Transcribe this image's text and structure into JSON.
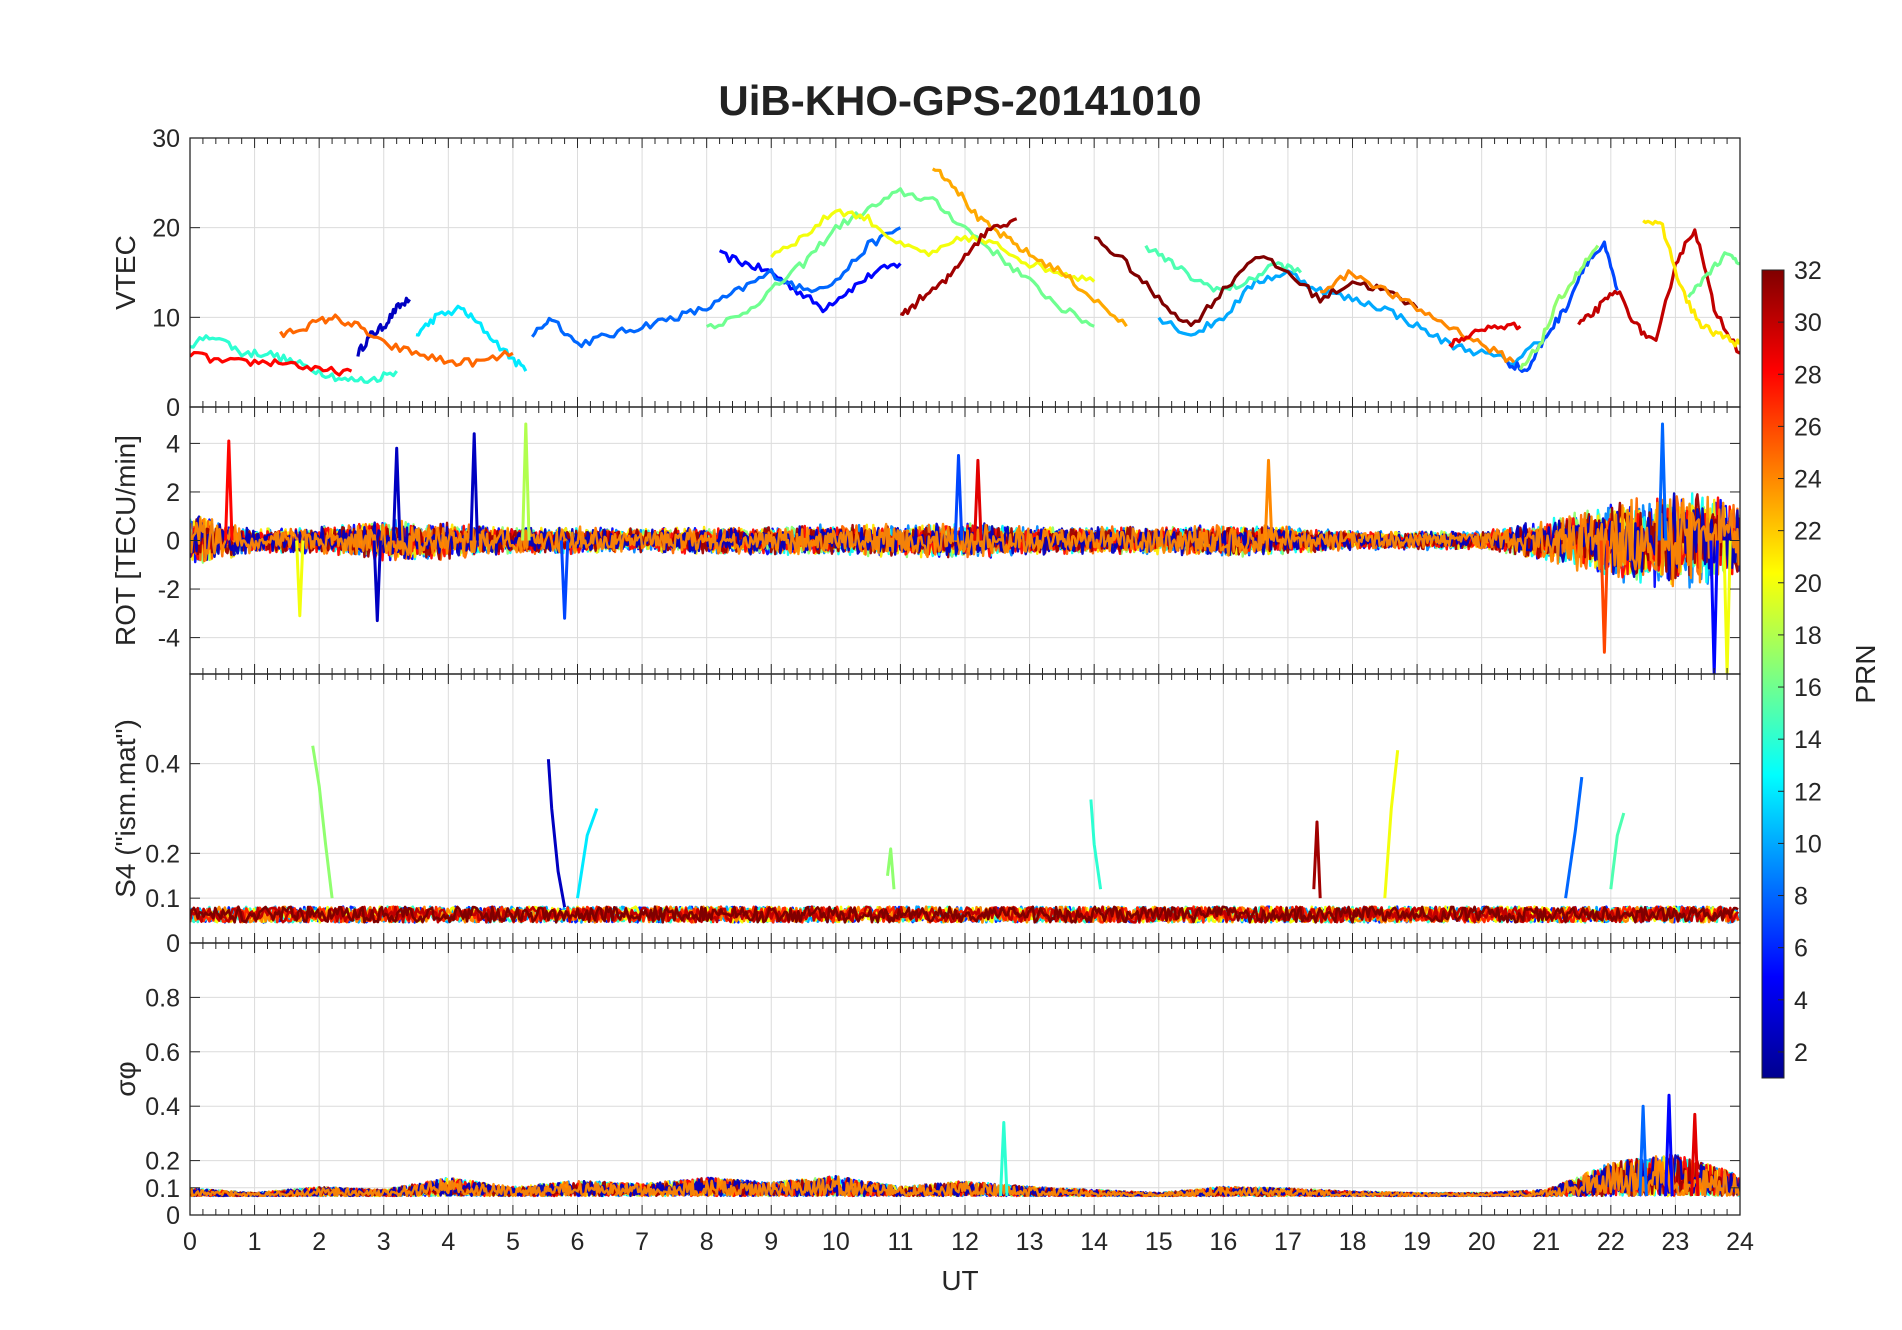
{
  "chart_data": {
    "type": "line",
    "title": "UiB-KHO-GPS-20141010",
    "xlabel": "UT",
    "xlim": [
      0,
      24
    ],
    "x_ticks": [
      0,
      1,
      2,
      3,
      4,
      5,
      6,
      7,
      8,
      9,
      10,
      11,
      12,
      13,
      14,
      15,
      16,
      17,
      18,
      19,
      20,
      21,
      22,
      23,
      24
    ],
    "colorbar": {
      "label": "PRN",
      "range": [
        1,
        32
      ],
      "ticks": [
        2,
        4,
        6,
        8,
        10,
        12,
        14,
        16,
        18,
        20,
        22,
        24,
        26,
        28,
        30,
        32
      ],
      "colormap": "jet"
    },
    "panels": [
      {
        "ylabel": "VTEC",
        "ylim": [
          0,
          30
        ],
        "yticks": [
          0,
          10,
          20,
          30
        ],
        "series": [
          {
            "prn": 3,
            "x": [
              2.6,
              2.8,
              3.0,
              3.2,
              3.4
            ],
            "y": [
              6,
              8,
              9,
              11,
              12
            ]
          },
          {
            "prn": 5,
            "x": [
              8.2,
              8.6,
              9.0,
              9.4,
              9.8,
              10.2,
              10.6,
              11.0
            ],
            "y": [
              17,
              16,
              15,
              13,
              11,
              13,
              15,
              16
            ]
          },
          {
            "prn": 8,
            "x": [
              5.3,
              5.6,
              6.0,
              6.5,
              7.0,
              7.5,
              8.0,
              8.5,
              9.0,
              9.5,
              10.0,
              10.5,
              11.0
            ],
            "y": [
              8,
              10,
              7,
              8,
              9,
              10,
              11,
              13,
              15,
              13,
              14,
              18,
              20
            ]
          },
          {
            "prn": 12,
            "x": [
              3.5,
              3.8,
              4.2,
              4.5,
              4.9,
              5.2
            ],
            "y": [
              8,
              10,
              11,
              9,
              6,
              4
            ]
          },
          {
            "prn": 14,
            "x": [
              0,
              0.4,
              0.8,
              1.2,
              1.6,
              2.0,
              2.4,
              2.8,
              3.2
            ],
            "y": [
              7,
              8,
              6,
              6,
              5,
              4,
              3,
              3,
              4
            ]
          },
          {
            "prn": 16,
            "x": [
              8.0,
              8.5,
              9.0,
              9.5,
              10.0,
              10.5,
              11.0,
              11.5,
              12.0,
              12.5,
              13.0,
              13.5,
              14.0
            ],
            "y": [
              9,
              10,
              13,
              16,
              20,
              22,
              24,
              23,
              20,
              17,
              14,
              11,
              9
            ]
          },
          {
            "prn": 20,
            "x": [
              9.0,
              9.5,
              10.0,
              10.5,
              11.0,
              11.5,
              12.0,
              12.5,
              13.0,
              13.5,
              14.0
            ],
            "y": [
              17,
              19,
              22,
              21,
              18,
              17,
              19,
              18,
              16,
              15,
              14
            ]
          },
          {
            "prn": 23,
            "x": [
              11.5,
              11.8,
              12.2,
              12.6,
              13.0,
              13.5,
              14.0,
              14.5
            ],
            "y": [
              27,
              25,
              21,
              19,
              17,
              15,
              12,
              9
            ]
          },
          {
            "prn": 25,
            "x": [
              1.4,
              1.8,
              2.2,
              2.6,
              3.0,
              3.5,
              4.0,
              4.5,
              5.0
            ],
            "y": [
              8,
              9,
              10,
              9,
              7,
              6,
              5,
              5,
              6
            ]
          },
          {
            "prn": 28,
            "x": [
              0,
              0.5,
              1.0,
              1.5,
              2.0,
              2.5
            ],
            "y": [
              6,
              5,
              5,
              5,
              4,
              4
            ]
          },
          {
            "prn": 31,
            "x": [
              11.0,
              11.3,
              11.7,
              12.0,
              12.4,
              12.8
            ],
            "y": [
              10,
              12,
              14,
              17,
              20,
              21
            ]
          },
          {
            "prn": 10,
            "x": [
              15.0,
              15.5,
              16.0,
              16.5,
              17.0,
              17.5,
              18.0,
              18.5,
              19.0,
              19.5,
              20.0,
              20.5,
              21.0
            ],
            "y": [
              10,
              8,
              10,
              14,
              15,
              13,
              12,
              11,
              9,
              7,
              6,
              5,
              8
            ]
          },
          {
            "prn": 15,
            "x": [
              14.8,
              15.2,
              15.6,
              16.0,
              16.4,
              16.8,
              17.2
            ],
            "y": [
              18,
              16,
              14,
              13,
              14,
              16,
              15
            ]
          },
          {
            "prn": 32,
            "x": [
              14.0,
              14.5,
              15.0,
              15.5,
              16.0,
              16.5,
              17.0,
              17.5,
              18.0,
              18.5,
              19.0
            ],
            "y": [
              19,
              16,
              12,
              9,
              13,
              17,
              15,
              12,
              14,
              13,
              11
            ]
          },
          {
            "prn": 24,
            "x": [
              17.5,
              18.0,
              18.5,
              19.0,
              19.5,
              20.0,
              20.5
            ],
            "y": [
              13,
              15,
              13,
              11,
              9,
              7,
              5
            ]
          },
          {
            "prn": 29,
            "x": [
              19.5,
              19.8,
              20.2,
              20.6
            ],
            "y": [
              7,
              8,
              9,
              9
            ]
          },
          {
            "prn": 7,
            "x": [
              20.4,
              20.7,
              21.0,
              21.3,
              21.6,
              21.9,
              22.1
            ],
            "y": [
              5,
              4,
              8,
              11,
              16,
              18,
              13
            ]
          },
          {
            "prn": 17,
            "x": [
              20.6,
              20.9,
              21.2,
              21.5,
              21.8
            ],
            "y": [
              4,
              7,
              12,
              15,
              18
            ]
          },
          {
            "prn": 30,
            "x": [
              21.5,
              21.8,
              22.1,
              22.4,
              22.7,
              23.0,
              23.3,
              23.6,
              24.0
            ],
            "y": [
              9,
              11,
              13,
              9,
              7,
              16,
              20,
              11,
              6
            ]
          },
          {
            "prn": 21,
            "x": [
              22.5,
              22.8,
              23.1,
              23.4,
              23.7,
              24.0
            ],
            "y": [
              21,
              20,
              13,
              9,
              8,
              7
            ]
          },
          {
            "prn": 16,
            "x": [
              23.2,
              23.5,
              23.8,
              24.0
            ],
            "y": [
              12,
              15,
              17,
              16
            ]
          }
        ]
      },
      {
        "ylabel": "ROT [TECU/min]",
        "ylim": [
          -5.5,
          5.5
        ],
        "yticks": [
          -4,
          -2,
          0,
          2,
          4
        ],
        "noise_envelope": {
          "x": [
            0,
            1,
            2,
            3,
            4,
            5,
            6,
            7,
            8,
            9,
            10,
            11,
            12,
            13,
            14,
            15,
            16,
            17,
            18,
            19,
            20,
            21,
            22,
            23,
            24
          ],
          "amplitude": [
            1.2,
            0.5,
            0.6,
            0.9,
            0.8,
            0.6,
            0.6,
            0.5,
            0.6,
            0.6,
            0.7,
            0.7,
            0.8,
            0.6,
            0.6,
            0.6,
            0.7,
            0.6,
            0.4,
            0.4,
            0.4,
            0.9,
            1.7,
            2.2,
            1.6
          ]
        },
        "spikes": [
          {
            "prn": 28,
            "x": 0.6,
            "y": 4.1
          },
          {
            "prn": 3,
            "x": 3.2,
            "y": 3.8
          },
          {
            "prn": 3,
            "x": 4.4,
            "y": 4.4
          },
          {
            "prn": 18,
            "x": 5.2,
            "y": 4.8
          },
          {
            "prn": 3,
            "x": 2.9,
            "y": -3.3
          },
          {
            "prn": 20,
            "x": 1.7,
            "y": -3.1
          },
          {
            "prn": 7,
            "x": 5.8,
            "y": -3.2
          },
          {
            "prn": 7,
            "x": 11.9,
            "y": 3.5
          },
          {
            "prn": 29,
            "x": 12.2,
            "y": 3.3
          },
          {
            "prn": 24,
            "x": 16.7,
            "y": 3.3
          },
          {
            "prn": 26,
            "x": 21.9,
            "y": -4.6
          },
          {
            "prn": 5,
            "x": 23.6,
            "y": -5.5
          },
          {
            "prn": 20,
            "x": 23.8,
            "y": -5.5
          },
          {
            "prn": 8,
            "x": 22.8,
            "y": 4.8
          }
        ]
      },
      {
        "ylabel": "S4 (\"ism.mat\")",
        "ylim": [
          0,
          0.6
        ],
        "yticks": [
          0,
          0.1,
          0.2,
          0.4
        ],
        "baseline": 0.06,
        "spikes": [
          {
            "prn": 17,
            "x": [
              1.9,
              2.0,
              2.1,
              2.2
            ],
            "y": [
              0.44,
              0.35,
              0.22,
              0.1
            ]
          },
          {
            "prn": 3,
            "x": [
              5.55,
              5.6,
              5.7,
              5.8
            ],
            "y": [
              0.41,
              0.3,
              0.16,
              0.08
            ]
          },
          {
            "prn": 12,
            "x": [
              6.0,
              6.15,
              6.3
            ],
            "y": [
              0.1,
              0.24,
              0.3
            ]
          },
          {
            "prn": 17,
            "x": [
              10.8,
              10.85,
              10.9
            ],
            "y": [
              0.15,
              0.21,
              0.12
            ]
          },
          {
            "prn": 14,
            "x": [
              13.95,
              14.0,
              14.1
            ],
            "y": [
              0.32,
              0.22,
              0.12
            ]
          },
          {
            "prn": 31,
            "x": [
              17.4,
              17.45,
              17.5
            ],
            "y": [
              0.12,
              0.27,
              0.1
            ]
          },
          {
            "prn": 20,
            "x": [
              18.5,
              18.6,
              18.7
            ],
            "y": [
              0.1,
              0.3,
              0.43
            ]
          },
          {
            "prn": 8,
            "x": [
              21.3,
              21.45,
              21.55
            ],
            "y": [
              0.1,
              0.25,
              0.37
            ]
          },
          {
            "prn": 15,
            "x": [
              22.0,
              22.1,
              22.2
            ],
            "y": [
              0.12,
              0.24,
              0.29
            ]
          }
        ]
      },
      {
        "ylabel": "σφ",
        "ylim": [
          0,
          1
        ],
        "yticks": [
          0,
          0.1,
          0.2,
          0.4,
          0.6,
          0.8
        ],
        "baseline": 0.07,
        "noise_envelope": {
          "x": [
            0,
            1,
            2,
            3,
            4,
            5,
            6,
            7,
            8,
            9,
            10,
            11,
            12,
            13,
            14,
            15,
            16,
            17,
            18,
            19,
            20,
            21,
            22,
            23,
            24
          ],
          "amplitude": [
            0.05,
            0.02,
            0.06,
            0.04,
            0.12,
            0.06,
            0.1,
            0.08,
            0.12,
            0.09,
            0.13,
            0.06,
            0.1,
            0.06,
            0.04,
            0.02,
            0.06,
            0.05,
            0.03,
            0.02,
            0.02,
            0.04,
            0.22,
            0.28,
            0.14
          ]
        },
        "spikes": [
          {
            "prn": 14,
            "x": 12.6,
            "y": 0.34
          },
          {
            "prn": 8,
            "x": 22.5,
            "y": 0.4
          },
          {
            "prn": 5,
            "x": 22.9,
            "y": 0.44
          },
          {
            "prn": 29,
            "x": 23.3,
            "y": 0.37
          }
        ]
      }
    ]
  }
}
